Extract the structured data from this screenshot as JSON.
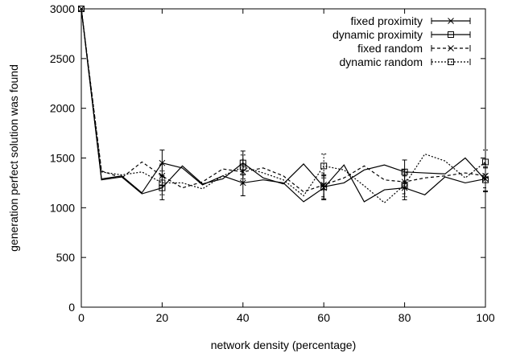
{
  "chart_data": {
    "type": "line",
    "title": "",
    "xlabel": "network density (percentage)",
    "ylabel": "generation perfect solution was found",
    "xlim": [
      0,
      100
    ],
    "ylim": [
      0,
      3000
    ],
    "x_ticks": [
      "0",
      "20",
      "40",
      "60",
      "80",
      "100"
    ],
    "y_ticks": [
      "0",
      "500",
      "1000",
      "1500",
      "2000",
      "2500",
      "3000"
    ],
    "legend_position": "top-right",
    "grid": false,
    "x": [
      0,
      5,
      10,
      15,
      20,
      25,
      30,
      35,
      40,
      45,
      50,
      55,
      60,
      65,
      70,
      75,
      80,
      85,
      90,
      95,
      100
    ],
    "series": [
      {
        "name": "fixed proximity",
        "style": "solid",
        "marker": "cross",
        "values": [
          3000,
          1290,
          1320,
          1150,
          1450,
          1400,
          1230,
          1320,
          1250,
          1280,
          1250,
          1060,
          1200,
          1430,
          1060,
          1180,
          1200,
          1130,
          1310,
          1250,
          1290
        ],
        "error_x": [
          20,
          40,
          60,
          80,
          100
        ],
        "error_y": [
          130,
          130,
          120,
          120,
          120
        ]
      },
      {
        "name": "dynamic proximity",
        "style": "solid",
        "marker": "square",
        "values": [
          3000,
          1280,
          1310,
          1140,
          1200,
          1420,
          1240,
          1290,
          1450,
          1300,
          1240,
          1440,
          1210,
          1250,
          1380,
          1430,
          1360,
          1350,
          1340,
          1500,
          1280
        ],
        "error_x": [
          20,
          40,
          60,
          80,
          100
        ],
        "error_y": [
          120,
          120,
          120,
          120,
          120
        ]
      },
      {
        "name": "fixed random",
        "style": "dashed",
        "marker": "cross",
        "values": [
          3000,
          1370,
          1300,
          1460,
          1320,
          1200,
          1260,
          1390,
          1360,
          1400,
          1320,
          1160,
          1230,
          1300,
          1420,
          1280,
          1260,
          1300,
          1320,
          1350,
          1320
        ],
        "error_x": [
          20,
          40,
          60,
          80,
          100
        ],
        "error_y": [
          120,
          120,
          120,
          120,
          120
        ]
      },
      {
        "name": "dynamic random",
        "style": "dotted",
        "marker": "square",
        "values": [
          3000,
          1360,
          1330,
          1360,
          1250,
          1250,
          1190,
          1320,
          1410,
          1350,
          1280,
          1120,
          1420,
          1380,
          1220,
          1050,
          1230,
          1540,
          1470,
          1300,
          1460
        ],
        "error_x": [
          20,
          40,
          60,
          80,
          100
        ],
        "error_y": [
          120,
          120,
          120,
          120,
          120
        ]
      }
    ]
  }
}
